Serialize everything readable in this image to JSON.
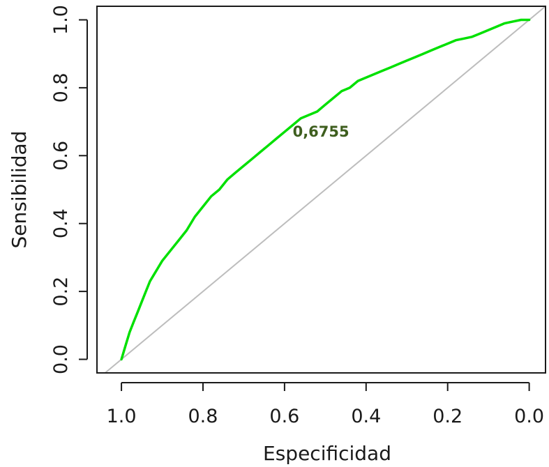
{
  "chart_data": {
    "type": "line",
    "xlabel": "Especificidad",
    "ylabel": "Sensibilidad",
    "xlim": [
      1.06,
      -0.04
    ],
    "ylim": [
      -0.04,
      1.04
    ],
    "x_ticks": [
      1.0,
      0.8,
      0.6,
      0.4,
      0.2,
      0.0
    ],
    "x_tick_labels": [
      "1.0",
      "0.8",
      "0.6",
      "0.4",
      "0.2",
      "0.0"
    ],
    "y_ticks": [
      0.0,
      0.2,
      0.4,
      0.6,
      0.8,
      1.0
    ],
    "y_tick_labels": [
      "0.0",
      "0.2",
      "0.4",
      "0.6",
      "0.8",
      "1.0"
    ],
    "annotation": "0,6755",
    "annotation_x": 0.58,
    "annotation_y": 0.67,
    "grid": false,
    "colors": {
      "roc": "#00e000",
      "diagonal": "#bdbdbd",
      "annotation": "#3e5e1e",
      "axis": "#1a1a1a"
    },
    "series": [
      {
        "x": [
          1.0,
          0.99,
          0.98,
          0.97,
          0.96,
          0.95,
          0.94,
          0.93,
          0.92,
          0.91,
          0.9,
          0.88,
          0.86,
          0.84,
          0.82,
          0.8,
          0.78,
          0.76,
          0.74,
          0.72,
          0.7,
          0.68,
          0.66,
          0.64,
          0.62,
          0.6,
          0.58,
          0.56,
          0.54,
          0.52,
          0.5,
          0.48,
          0.46,
          0.44,
          0.42,
          0.4,
          0.38,
          0.36,
          0.34,
          0.32,
          0.3,
          0.28,
          0.26,
          0.24,
          0.22,
          0.2,
          0.18,
          0.16,
          0.14,
          0.12,
          0.1,
          0.08,
          0.06,
          0.04,
          0.02,
          0.0
        ],
        "y": [
          0.0,
          0.04,
          0.08,
          0.11,
          0.14,
          0.17,
          0.2,
          0.23,
          0.25,
          0.27,
          0.29,
          0.32,
          0.35,
          0.38,
          0.42,
          0.45,
          0.48,
          0.5,
          0.53,
          0.55,
          0.57,
          0.59,
          0.61,
          0.63,
          0.65,
          0.67,
          0.69,
          0.71,
          0.72,
          0.73,
          0.75,
          0.77,
          0.79,
          0.8,
          0.82,
          0.83,
          0.84,
          0.85,
          0.86,
          0.87,
          0.88,
          0.89,
          0.9,
          0.91,
          0.92,
          0.93,
          0.94,
          0.945,
          0.95,
          0.96,
          0.97,
          0.98,
          0.99,
          0.995,
          1.0,
          1.0
        ]
      }
    ]
  }
}
